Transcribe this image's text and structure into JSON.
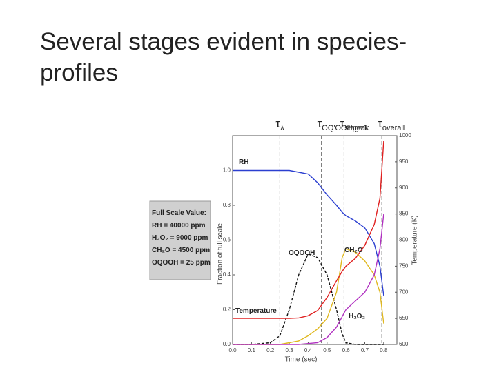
{
  "slide": {
    "title_lines": [
      "Several stages evident in species-",
      "profiles"
    ]
  },
  "chart_data": {
    "type": "line",
    "xlabel": "Time (sec)",
    "ylabel": "Fraction of full scale",
    "y2label": "Temperature (K)",
    "x": [
      0,
      0.1,
      0.2,
      0.25,
      0.3,
      0.35,
      0.4,
      0.45,
      0.5,
      0.55,
      0.58,
      0.6,
      0.65,
      0.7,
      0.75,
      0.78,
      0.8
    ],
    "series": [
      {
        "name": "RH",
        "color": "#2b3fd0",
        "values": [
          1.0,
          1.0,
          1.0,
          1.0,
          1.0,
          0.99,
          0.98,
          0.93,
          0.86,
          0.8,
          0.76,
          0.74,
          0.71,
          0.67,
          0.58,
          0.45,
          0.28
        ]
      },
      {
        "name": "OQOOH",
        "color": "#111111",
        "dashed": true,
        "values": [
          0,
          0,
          0.01,
          0.05,
          0.2,
          0.4,
          0.52,
          0.5,
          0.4,
          0.2,
          0.06,
          0.01,
          0,
          0,
          0,
          0,
          0
        ]
      },
      {
        "name": "CH₂O",
        "color": "#e0b820",
        "values": [
          0,
          0,
          0,
          0,
          0.01,
          0.02,
          0.05,
          0.09,
          0.15,
          0.3,
          0.5,
          0.55,
          0.53,
          0.48,
          0.4,
          0.3,
          0.12
        ]
      },
      {
        "name": "H₂O₂",
        "color": "#b030c0",
        "values": [
          0,
          0,
          0,
          0,
          0,
          0,
          0.005,
          0.01,
          0.04,
          0.1,
          0.16,
          0.2,
          0.25,
          0.3,
          0.4,
          0.55,
          0.75
        ]
      },
      {
        "name": "Temperature",
        "color": "#e02020",
        "axis": "y2",
        "values": [
          650,
          650,
          650,
          650,
          650,
          651,
          655,
          665,
          690,
          722,
          740,
          750,
          765,
          790,
          830,
          880,
          990
        ]
      }
    ],
    "markers": [
      {
        "x": 0.25,
        "symbol": "τ",
        "sub": "λ"
      },
      {
        "x": 0.47,
        "symbol": "τ",
        "sub": "OQ'OOHpeak"
      },
      {
        "x": 0.59,
        "symbol": "τ",
        "sub": "stage1"
      },
      {
        "x": 0.79,
        "symbol": "τ",
        "sub": "overall"
      }
    ],
    "full_scale": {
      "title": "Full Scale Value:",
      "lines": [
        "RH = 40000 ppm",
        "H₂O₂ = 9000 ppm",
        "CH₂O = 4500 ppm",
        "OQOOH = 25 ppm"
      ]
    },
    "xlim": [
      0,
      0.87
    ],
    "ylim": [
      0,
      1.2
    ],
    "y2lim": [
      600,
      1000
    ],
    "xticks": [
      {
        "value": 0,
        "label": "0.0"
      },
      0.1,
      0.2,
      0.3,
      0.4,
      0.5,
      0.6,
      0.7,
      0.8
    ],
    "yticks": [
      {
        "value": 0,
        "label": "0.0"
      },
      0.2,
      0.4,
      0.6,
      0.8,
      {
        "value": 1,
        "label": "1.0"
      }
    ],
    "y2ticks": [
      600,
      650,
      700,
      750,
      800,
      850,
      900,
      950,
      1000
    ]
  }
}
